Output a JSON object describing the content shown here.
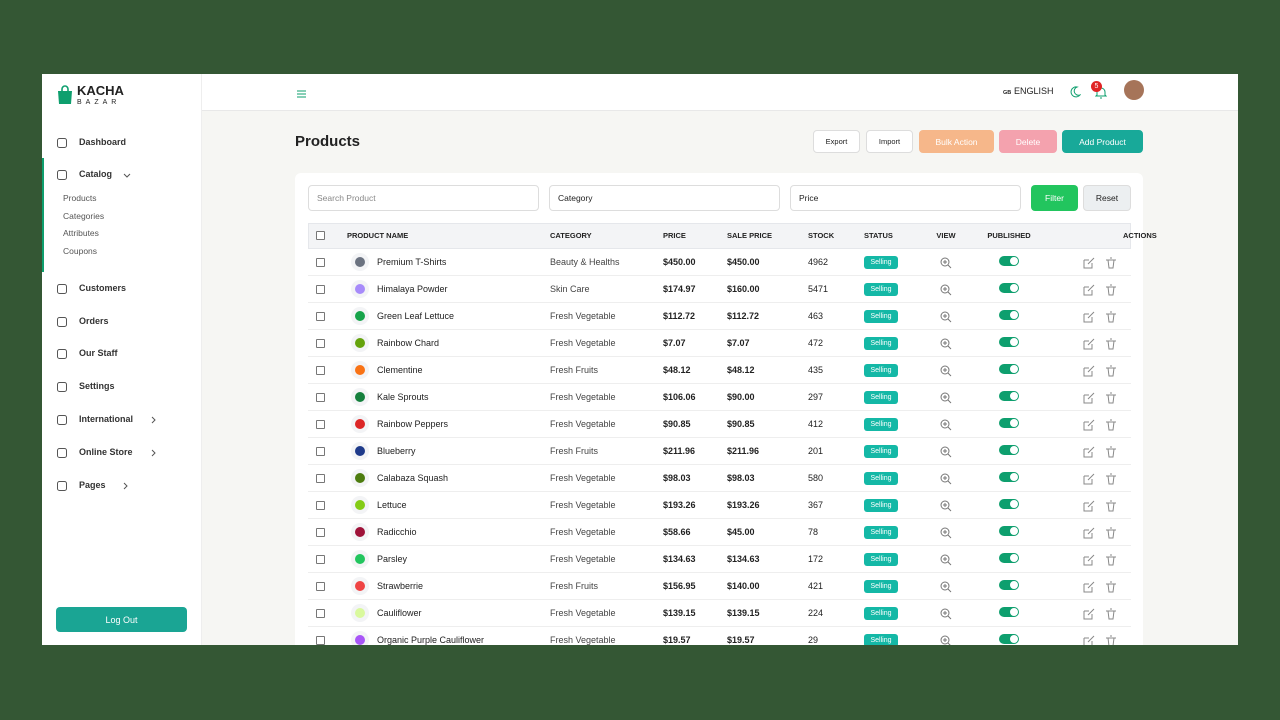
{
  "brand": {
    "name": "KACHA",
    "sub": "BAZAR"
  },
  "sidebar": {
    "items": [
      {
        "label": "Dashboard"
      },
      {
        "label": "Catalog",
        "children": [
          "Products",
          "Categories",
          "Attributes",
          "Coupons"
        ]
      },
      {
        "label": "Customers"
      },
      {
        "label": "Orders"
      },
      {
        "label": "Our Staff"
      },
      {
        "label": "Settings"
      },
      {
        "label": "International"
      },
      {
        "label": "Online Store"
      },
      {
        "label": "Pages"
      }
    ],
    "logout": "Log Out"
  },
  "header": {
    "flag": "GB",
    "language": "ENGLISH",
    "notifications": 5
  },
  "page": {
    "title": "Products",
    "buttons": [
      "Export",
      "Import",
      "Bulk Action",
      "Delete",
      "Add Product"
    ]
  },
  "filters": {
    "search": "Search Product",
    "category": "Category",
    "price": "Price",
    "filter": "Filter",
    "reset": "Reset"
  },
  "table": {
    "columns": [
      "PRODUCT NAME",
      "CATEGORY",
      "PRICE",
      "SALE PRICE",
      "STOCK",
      "STATUS",
      "VIEW",
      "PUBLISHED",
      "ACTIONS"
    ],
    "rows": [
      {
        "name": "Premium T-Shirts",
        "category": "Beauty & Healths",
        "price": "$450.00",
        "sale_price": "$450.00",
        "stock": 4962,
        "status": "Selling"
      },
      {
        "name": "Himalaya Powder",
        "category": "Skin Care",
        "price": "$174.97",
        "sale_price": "$160.00",
        "stock": 5471,
        "status": "Selling"
      },
      {
        "name": "Green Leaf Lettuce",
        "category": "Fresh Vegetable",
        "price": "$112.72",
        "sale_price": "$112.72",
        "stock": 463,
        "status": "Selling"
      },
      {
        "name": "Rainbow Chard",
        "category": "Fresh Vegetable",
        "price": "$7.07",
        "sale_price": "$7.07",
        "stock": 472,
        "status": "Selling"
      },
      {
        "name": "Clementine",
        "category": "Fresh Fruits",
        "price": "$48.12",
        "sale_price": "$48.12",
        "stock": 435,
        "status": "Selling"
      },
      {
        "name": "Kale Sprouts",
        "category": "Fresh Vegetable",
        "price": "$106.06",
        "sale_price": "$90.00",
        "stock": 297,
        "status": "Selling"
      },
      {
        "name": "Rainbow Peppers",
        "category": "Fresh Vegetable",
        "price": "$90.85",
        "sale_price": "$90.85",
        "stock": 412,
        "status": "Selling"
      },
      {
        "name": "Blueberry",
        "category": "Fresh Fruits",
        "price": "$211.96",
        "sale_price": "$211.96",
        "stock": 201,
        "status": "Selling"
      },
      {
        "name": "Calabaza Squash",
        "category": "Fresh Vegetable",
        "price": "$98.03",
        "sale_price": "$98.03",
        "stock": 580,
        "status": "Selling"
      },
      {
        "name": "Lettuce",
        "category": "Fresh Vegetable",
        "price": "$193.26",
        "sale_price": "$193.26",
        "stock": 367,
        "status": "Selling"
      },
      {
        "name": "Radicchio",
        "category": "Fresh Vegetable",
        "price": "$58.66",
        "sale_price": "$45.00",
        "stock": 78,
        "status": "Selling"
      },
      {
        "name": "Parsley",
        "category": "Fresh Vegetable",
        "price": "$134.63",
        "sale_price": "$134.63",
        "stock": 172,
        "status": "Selling"
      },
      {
        "name": "Strawberrie",
        "category": "Fresh Fruits",
        "price": "$156.95",
        "sale_price": "$140.00",
        "stock": 421,
        "status": "Selling"
      },
      {
        "name": "Cauliflower",
        "category": "Fresh Vegetable",
        "price": "$139.15",
        "sale_price": "$139.15",
        "stock": 224,
        "status": "Selling"
      },
      {
        "name": "Organic Purple Cauliflower",
        "category": "Fresh Vegetable",
        "price": "$19.57",
        "sale_price": "$19.57",
        "stock": 29,
        "status": "Selling"
      }
    ]
  }
}
